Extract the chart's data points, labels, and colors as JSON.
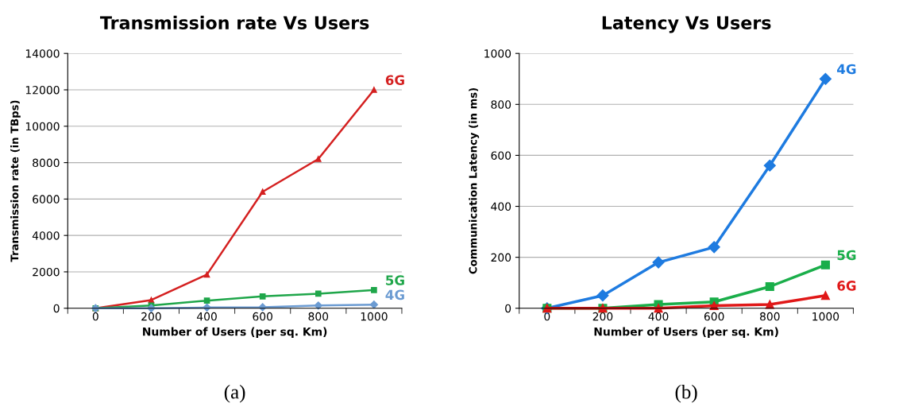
{
  "chart_data": [
    {
      "type": "line",
      "title": "Transmission rate Vs Users",
      "xlabel": "Number of Users (per sq. Km)",
      "ylabel": "Transmission rate (in TBps)",
      "categories": [
        "0",
        "200",
        "400",
        "600",
        "800",
        "1000"
      ],
      "series": [
        {
          "name": "6G",
          "color": "#d42020",
          "marker": "triangle",
          "values": [
            0,
            450,
            1850,
            6400,
            8200,
            12000
          ]
        },
        {
          "name": "5G",
          "color": "#1fa64a",
          "marker": "square",
          "values": [
            0,
            150,
            420,
            650,
            800,
            1000
          ]
        },
        {
          "name": "4G",
          "color": "#6b9bd2",
          "marker": "diamond",
          "values": [
            0,
            0,
            40,
            60,
            150,
            200
          ]
        }
      ],
      "ylim": [
        0,
        14000
      ],
      "yticks": [
        0,
        2000,
        4000,
        6000,
        8000,
        10000,
        12000,
        14000
      ],
      "grid": "y",
      "legend": false,
      "annotations": [
        "(a)"
      ]
    },
    {
      "type": "line",
      "title": "Latency Vs Users",
      "xlabel": "Number of Users (per sq. Km)",
      "ylabel": "Communication Latency (in ms)",
      "categories": [
        "0",
        "200",
        "400",
        "600",
        "800",
        "1000"
      ],
      "series": [
        {
          "name": "4G",
          "color": "#1e7be0",
          "marker": "diamond",
          "values": [
            0,
            50,
            180,
            240,
            560,
            900
          ]
        },
        {
          "name": "5G",
          "color": "#1aae4a",
          "marker": "square",
          "values": [
            0,
            0,
            15,
            25,
            85,
            170
          ]
        },
        {
          "name": "6G",
          "color": "#e01818",
          "marker": "triangle",
          "values": [
            0,
            0,
            0,
            10,
            15,
            50
          ]
        }
      ],
      "ylim": [
        0,
        1000
      ],
      "yticks": [
        0,
        200,
        400,
        600,
        800,
        1000
      ],
      "grid": "y",
      "legend": false,
      "annotations": [
        "(b)"
      ]
    }
  ]
}
